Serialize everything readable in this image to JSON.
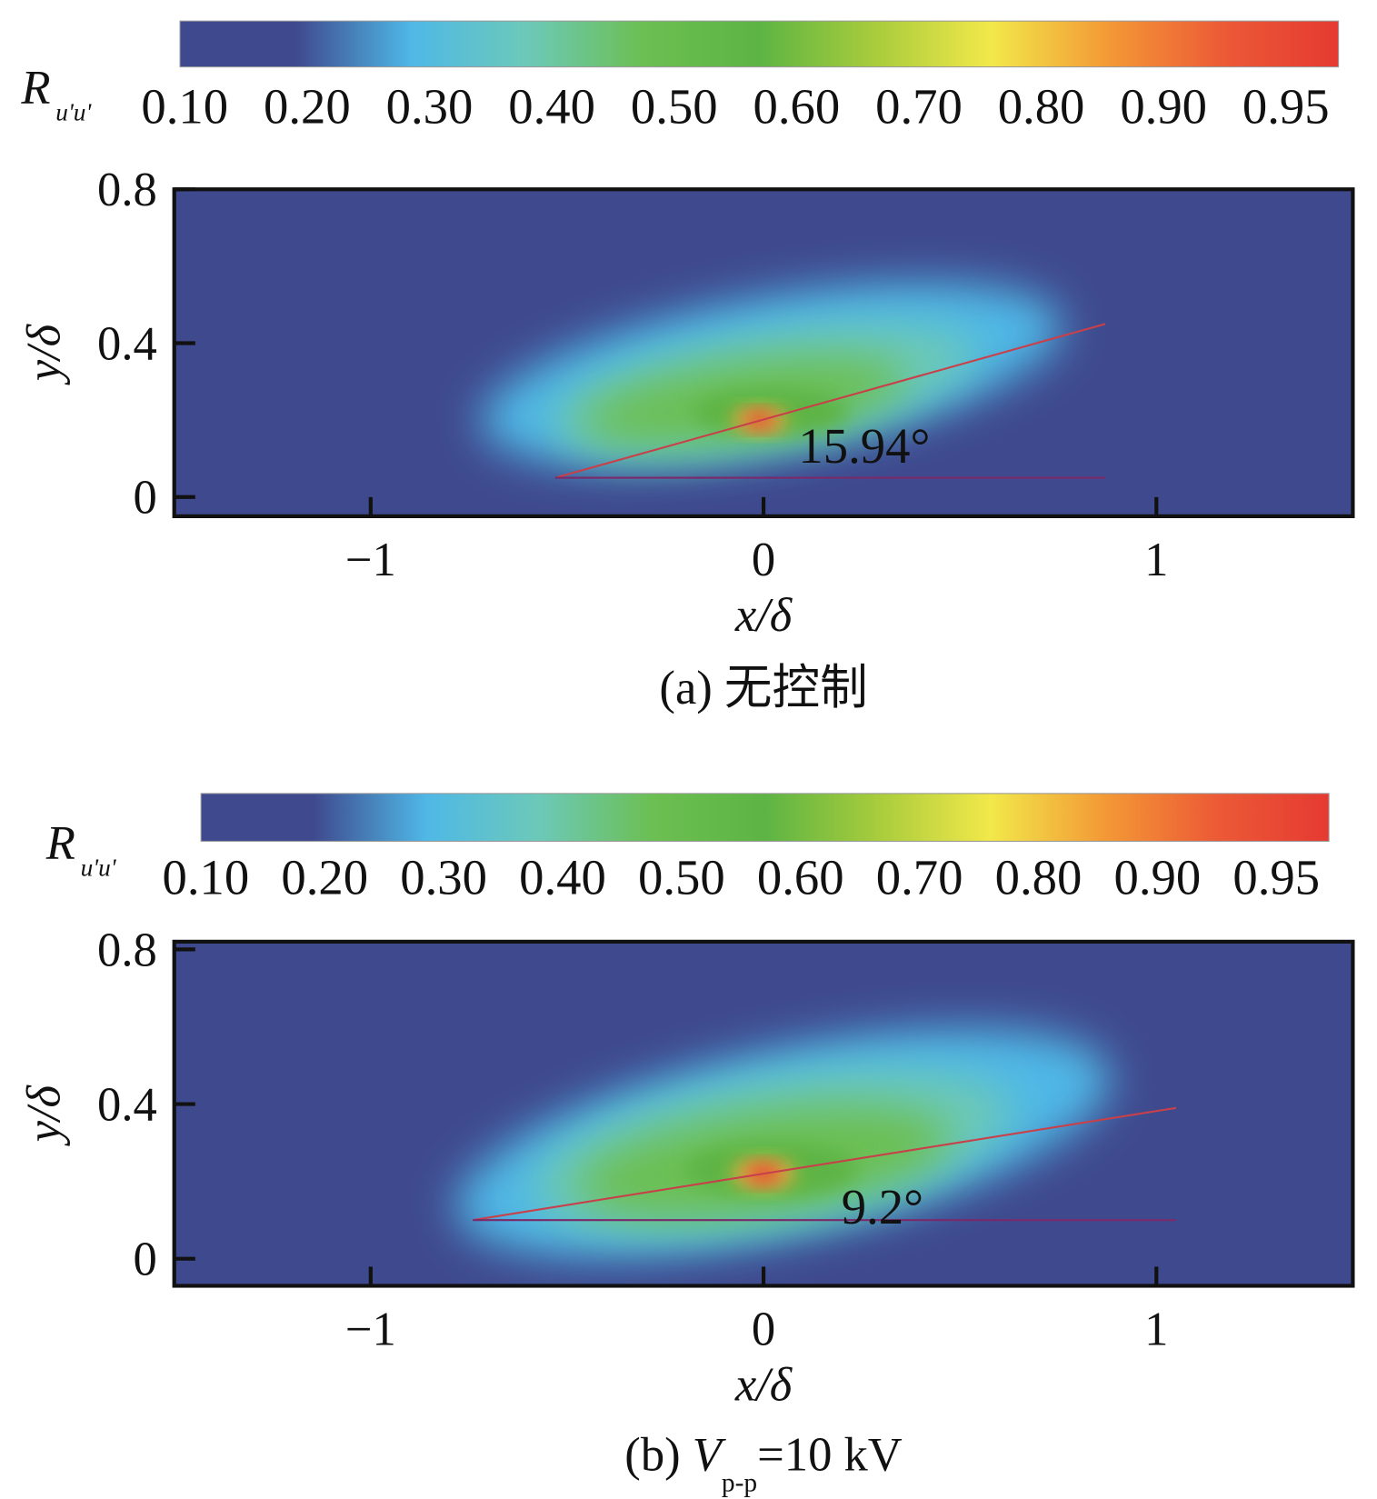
{
  "chart_data": [
    {
      "type": "heatmap",
      "colorbar_label": "R",
      "colorbar_label_sub": "u'u'",
      "colorbar_ticks": [
        {
          "value": 0.1,
          "label": "0.10"
        },
        {
          "value": 0.2,
          "label": "0.20"
        },
        {
          "value": 0.3,
          "label": "0.30"
        },
        {
          "value": 0.4,
          "label": "0.40"
        },
        {
          "value": 0.5,
          "label": "0.50"
        },
        {
          "value": 0.6,
          "label": "0.60"
        },
        {
          "value": 0.7,
          "label": "0.70"
        },
        {
          "value": 0.8,
          "label": "0.80"
        },
        {
          "value": 0.9,
          "label": "0.90"
        },
        0.95
      ],
      "colormap": [
        "#3f4a8e",
        "#3f4a8e",
        "#4fb8e6",
        "#6cc9b8",
        "#6cbf52",
        "#5db444",
        "#a8cc3c",
        "#f2e84a",
        "#f39a36",
        "#ec5a36",
        "#e53a32"
      ],
      "x_label": "x/δ",
      "y_label": "y/δ",
      "xlim": [
        -1.5,
        1.5
      ],
      "xticks": [
        {
          "value": -1,
          "label": "−1"
        },
        0,
        1
      ],
      "ylim": [
        -0.05,
        0.8
      ],
      "yticks": [
        0,
        0.4,
        0.8
      ],
      "annotation": "15.94°",
      "caption": "(a) 无控制"
    },
    {
      "type": "heatmap",
      "colorbar_label": "R",
      "colorbar_label_sub": "u'u'",
      "colorbar_ticks": [
        {
          "value": 0.1,
          "label": "0.10"
        },
        {
          "value": 0.2,
          "label": "0.20"
        },
        {
          "value": 0.3,
          "label": "0.30"
        },
        {
          "value": 0.4,
          "label": "0.40"
        },
        {
          "value": 0.5,
          "label": "0.50"
        },
        {
          "value": 0.6,
          "label": "0.60"
        },
        {
          "value": 0.7,
          "label": "0.70"
        },
        {
          "value": 0.8,
          "label": "0.80"
        },
        {
          "value": 0.9,
          "label": "0.90"
        },
        0.95
      ],
      "colormap": [
        "#3f4a8e",
        "#3f4a8e",
        "#4fb8e6",
        "#6cc9b8",
        "#6cbf52",
        "#5db444",
        "#a8cc3c",
        "#f2e84a",
        "#f39a36",
        "#ec5a36",
        "#e53a32"
      ],
      "x_label": "x/δ",
      "y_label": "y/δ",
      "xlim": [
        -1.5,
        1.5
      ],
      "xticks": [
        {
          "value": -1,
          "label": "−1"
        },
        0,
        1
      ],
      "ylim": [
        -0.07,
        0.82
      ],
      "yticks": [
        0,
        0.4,
        0.8
      ],
      "annotation": "9.2°",
      "caption_prefix": "(b) ",
      "caption_var": "V",
      "caption_sub": "p-p",
      "caption_rest": "=10 kV"
    }
  ]
}
